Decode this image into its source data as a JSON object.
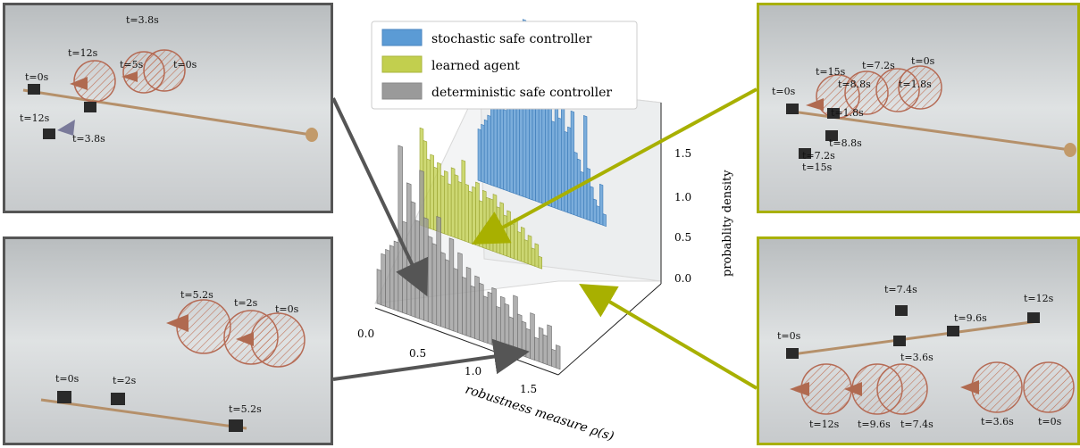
{
  "chart_data": {
    "type": "bar",
    "subtype": "3d-histogram",
    "xlabel": "robustness measure ρ(s)",
    "zlabel": "probablity density",
    "x_ticks": [
      "0.0",
      "0.5",
      "1.0",
      "1.5"
    ],
    "z_ticks": [
      "0.0",
      "0.5",
      "1.0",
      "1.5"
    ],
    "xlim": [
      0.0,
      1.5
    ],
    "zlim": [
      0.0,
      1.6
    ],
    "legend_position": "top",
    "series": [
      {
        "name": "stochastic safe controller",
        "color": "#5b9bd5",
        "bin_start": 0.5,
        "bin_end": 1.55,
        "values": [
          0.45,
          0.5,
          0.55,
          0.6,
          0.7,
          0.9,
          0.8,
          1.05,
          0.7,
          1.2,
          1.0,
          0.95,
          0.85,
          1.45,
          1.55,
          1.0,
          1.3,
          0.9,
          1.45,
          1.1,
          0.9,
          1.0,
          1.2,
          0.75,
          1.05,
          0.8,
          1.5,
          0.7,
          0.75,
          0.9,
          0.55,
          0.5,
          0.4,
          0.9,
          0.45,
          0.3,
          0.2,
          0.15,
          0.35,
          0.1
        ]
      },
      {
        "name": "learned agent",
        "color": "#c2cf4e",
        "bin_start": 0.3,
        "bin_end": 1.3,
        "values": [
          0.85,
          0.75,
          0.6,
          0.65,
          0.55,
          0.6,
          0.5,
          0.55,
          0.45,
          0.6,
          0.55,
          0.5,
          0.7,
          0.5,
          0.45,
          0.5,
          0.55,
          0.4,
          0.5,
          0.45,
          0.45,
          0.5,
          0.4,
          0.45,
          0.35,
          0.4,
          0.3,
          0.35,
          0.25,
          0.3,
          0.2,
          0.25,
          0.15,
          0.2,
          0.1
        ]
      },
      {
        "name": "deterministic safe controller",
        "color": "#9a9a9a",
        "bin_start": 0.0,
        "bin_end": 1.5,
        "values": [
          0.3,
          0.45,
          0.5,
          0.55,
          0.6,
          1.45,
          0.8,
          1.15,
          1.0,
          0.85,
          1.3,
          0.9,
          0.75,
          0.7,
          0.95,
          0.65,
          0.6,
          0.8,
          0.55,
          0.7,
          0.5,
          0.6,
          0.45,
          0.55,
          0.5,
          0.4,
          0.45,
          0.5,
          0.35,
          0.45,
          0.4,
          0.3,
          0.5,
          0.35,
          0.3,
          0.25,
          0.4,
          0.2,
          0.3,
          0.25,
          0.35,
          0.15,
          0.2
        ]
      }
    ]
  },
  "panels": {
    "top_left": {
      "labels": [
        "t=3.8s",
        "t=12s",
        "t=5s",
        "t=0s",
        "t=0s",
        "t=12s",
        "t=3.8s"
      ]
    },
    "bottom_left": {
      "labels": [
        "t=5.2s",
        "t=2s",
        "t=0s",
        "t=0s",
        "t=2s",
        "t=5.2s"
      ]
    },
    "top_right": {
      "labels": [
        "t=0s",
        "t=7.2s",
        "t=15s",
        "t=8.8s",
        "t=1.8s",
        "t=0s",
        "t=1.8s",
        "t=8.8s",
        "t=7.2s",
        "t=15s"
      ]
    },
    "bottom_right": {
      "labels": [
        "t=7.4s",
        "t=12s",
        "t=9.6s",
        "t=0s",
        "t=3.6s",
        "t=12s",
        "t=9.6s",
        "t=7.4s",
        "t=3.6s",
        "t=0s"
      ]
    }
  }
}
